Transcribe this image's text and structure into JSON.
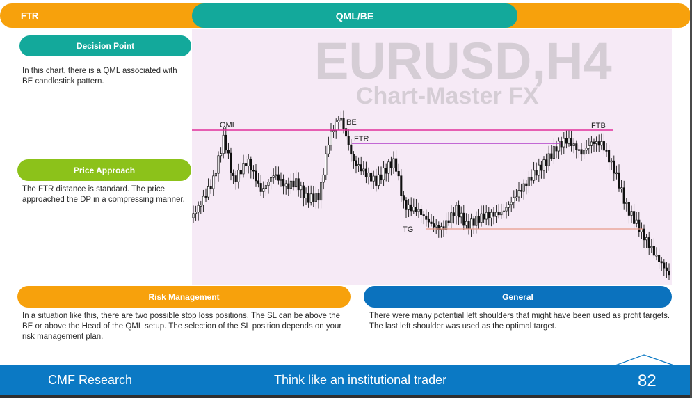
{
  "header": {
    "left_label": "FTR",
    "center_label": "QML/BE"
  },
  "sections": {
    "decision_point": {
      "title": "Decision Point",
      "text": "In this chart, there is a QML associated with BE candlestick pattern."
    },
    "price_approach": {
      "title": "Price Approach",
      "text": "The FTR distance is standard. The price approached the DP in a compressing manner."
    },
    "risk_management": {
      "title": "Risk Management",
      "text": "In a situation like this, there are two possible stop loss positions. The SL can be above the BE or above the Head of the QML setup. The selection of the SL position depends on your risk management plan."
    },
    "general": {
      "title": "General",
      "text": "There were many potential left shoulders that might have been used as profit targets. The last left shoulder was used as the optimal target."
    }
  },
  "chart": {
    "watermark_line1": "EURUSD,H4",
    "watermark_line2": "Chart-Master FX",
    "labels": {
      "qml": "QML",
      "be": "BE",
      "ftr": "FTR",
      "ftb": "FTB",
      "tg": "TG"
    },
    "colors": {
      "qml_line": "#e0309c",
      "ftr_line": "#b03cc8",
      "tg_line": "#e89a8a",
      "candle": "#111111"
    }
  },
  "footer": {
    "left": "CMF Research",
    "center": "Think like an institutional trader",
    "page": "82"
  }
}
